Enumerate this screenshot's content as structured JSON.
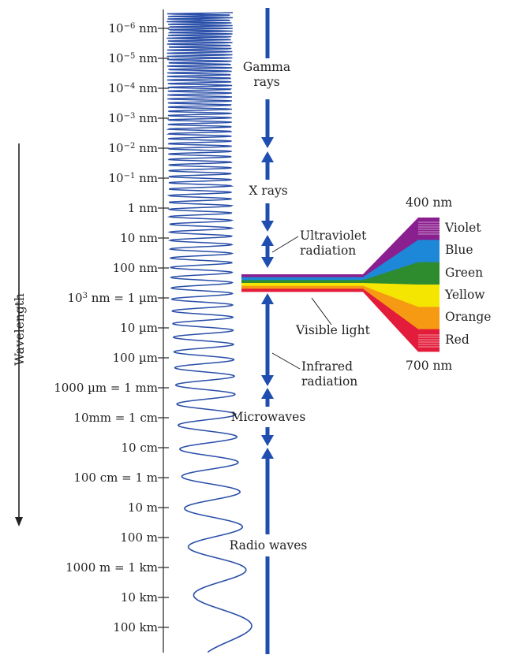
{
  "axis": {
    "title": "Wavelength",
    "ticks": [
      {
        "base": "10",
        "exp": "−6",
        "unit": " nm"
      },
      {
        "base": "10",
        "exp": "−5",
        "unit": " nm"
      },
      {
        "base": "10",
        "exp": "−4",
        "unit": " nm"
      },
      {
        "base": "10",
        "exp": "−3",
        "unit": " nm"
      },
      {
        "base": "10",
        "exp": "−2",
        "unit": " nm"
      },
      {
        "base": "10",
        "exp": "−1",
        "unit": " nm"
      },
      {
        "base": "1 nm",
        "exp": "",
        "unit": ""
      },
      {
        "base": "10 nm",
        "exp": "",
        "unit": ""
      },
      {
        "base": "100 nm",
        "exp": "",
        "unit": ""
      },
      {
        "base": "10",
        "exp": "3",
        "unit": " nm = 1 µm"
      },
      {
        "base": "10 µm",
        "exp": "",
        "unit": ""
      },
      {
        "base": "100 µm",
        "exp": "",
        "unit": ""
      },
      {
        "base": "1000 µm = 1 mm",
        "exp": "",
        "unit": ""
      },
      {
        "base": "10mm = 1 cm",
        "exp": "",
        "unit": ""
      },
      {
        "base": "10 cm",
        "exp": "",
        "unit": ""
      },
      {
        "base": "100 cm = 1 m",
        "exp": "",
        "unit": ""
      },
      {
        "base": "10 m",
        "exp": "",
        "unit": ""
      },
      {
        "base": "100 m",
        "exp": "",
        "unit": ""
      },
      {
        "base": "1000 m = 1 km",
        "exp": "",
        "unit": ""
      },
      {
        "base": "10 km",
        "exp": "",
        "unit": ""
      },
      {
        "base": "100 km",
        "exp": "",
        "unit": ""
      }
    ]
  },
  "regions": {
    "gamma": "Gamma\nrays",
    "xray": "X rays",
    "uv": "Ultraviolet\nradiation",
    "visible": "Visible light",
    "ir": "Infrared\nradiation",
    "micro": "Microwaves",
    "radio": "Radio waves"
  },
  "spectrum": {
    "top_label": "400 nm",
    "bottom_label": "700 nm",
    "colors": [
      {
        "name": "Violet",
        "hex": "#8a1f8f"
      },
      {
        "name": "Blue",
        "hex": "#1e88d8"
      },
      {
        "name": "Green",
        "hex": "#2e8b2e"
      },
      {
        "name": "Yellow",
        "hex": "#f4e600"
      },
      {
        "name": "Orange",
        "hex": "#f59a12"
      },
      {
        "name": "Red",
        "hex": "#e21c3a"
      }
    ]
  },
  "colors": {
    "wave": "#2a4fa8",
    "arrow": "#1f4eb0",
    "axis": "#333333"
  }
}
